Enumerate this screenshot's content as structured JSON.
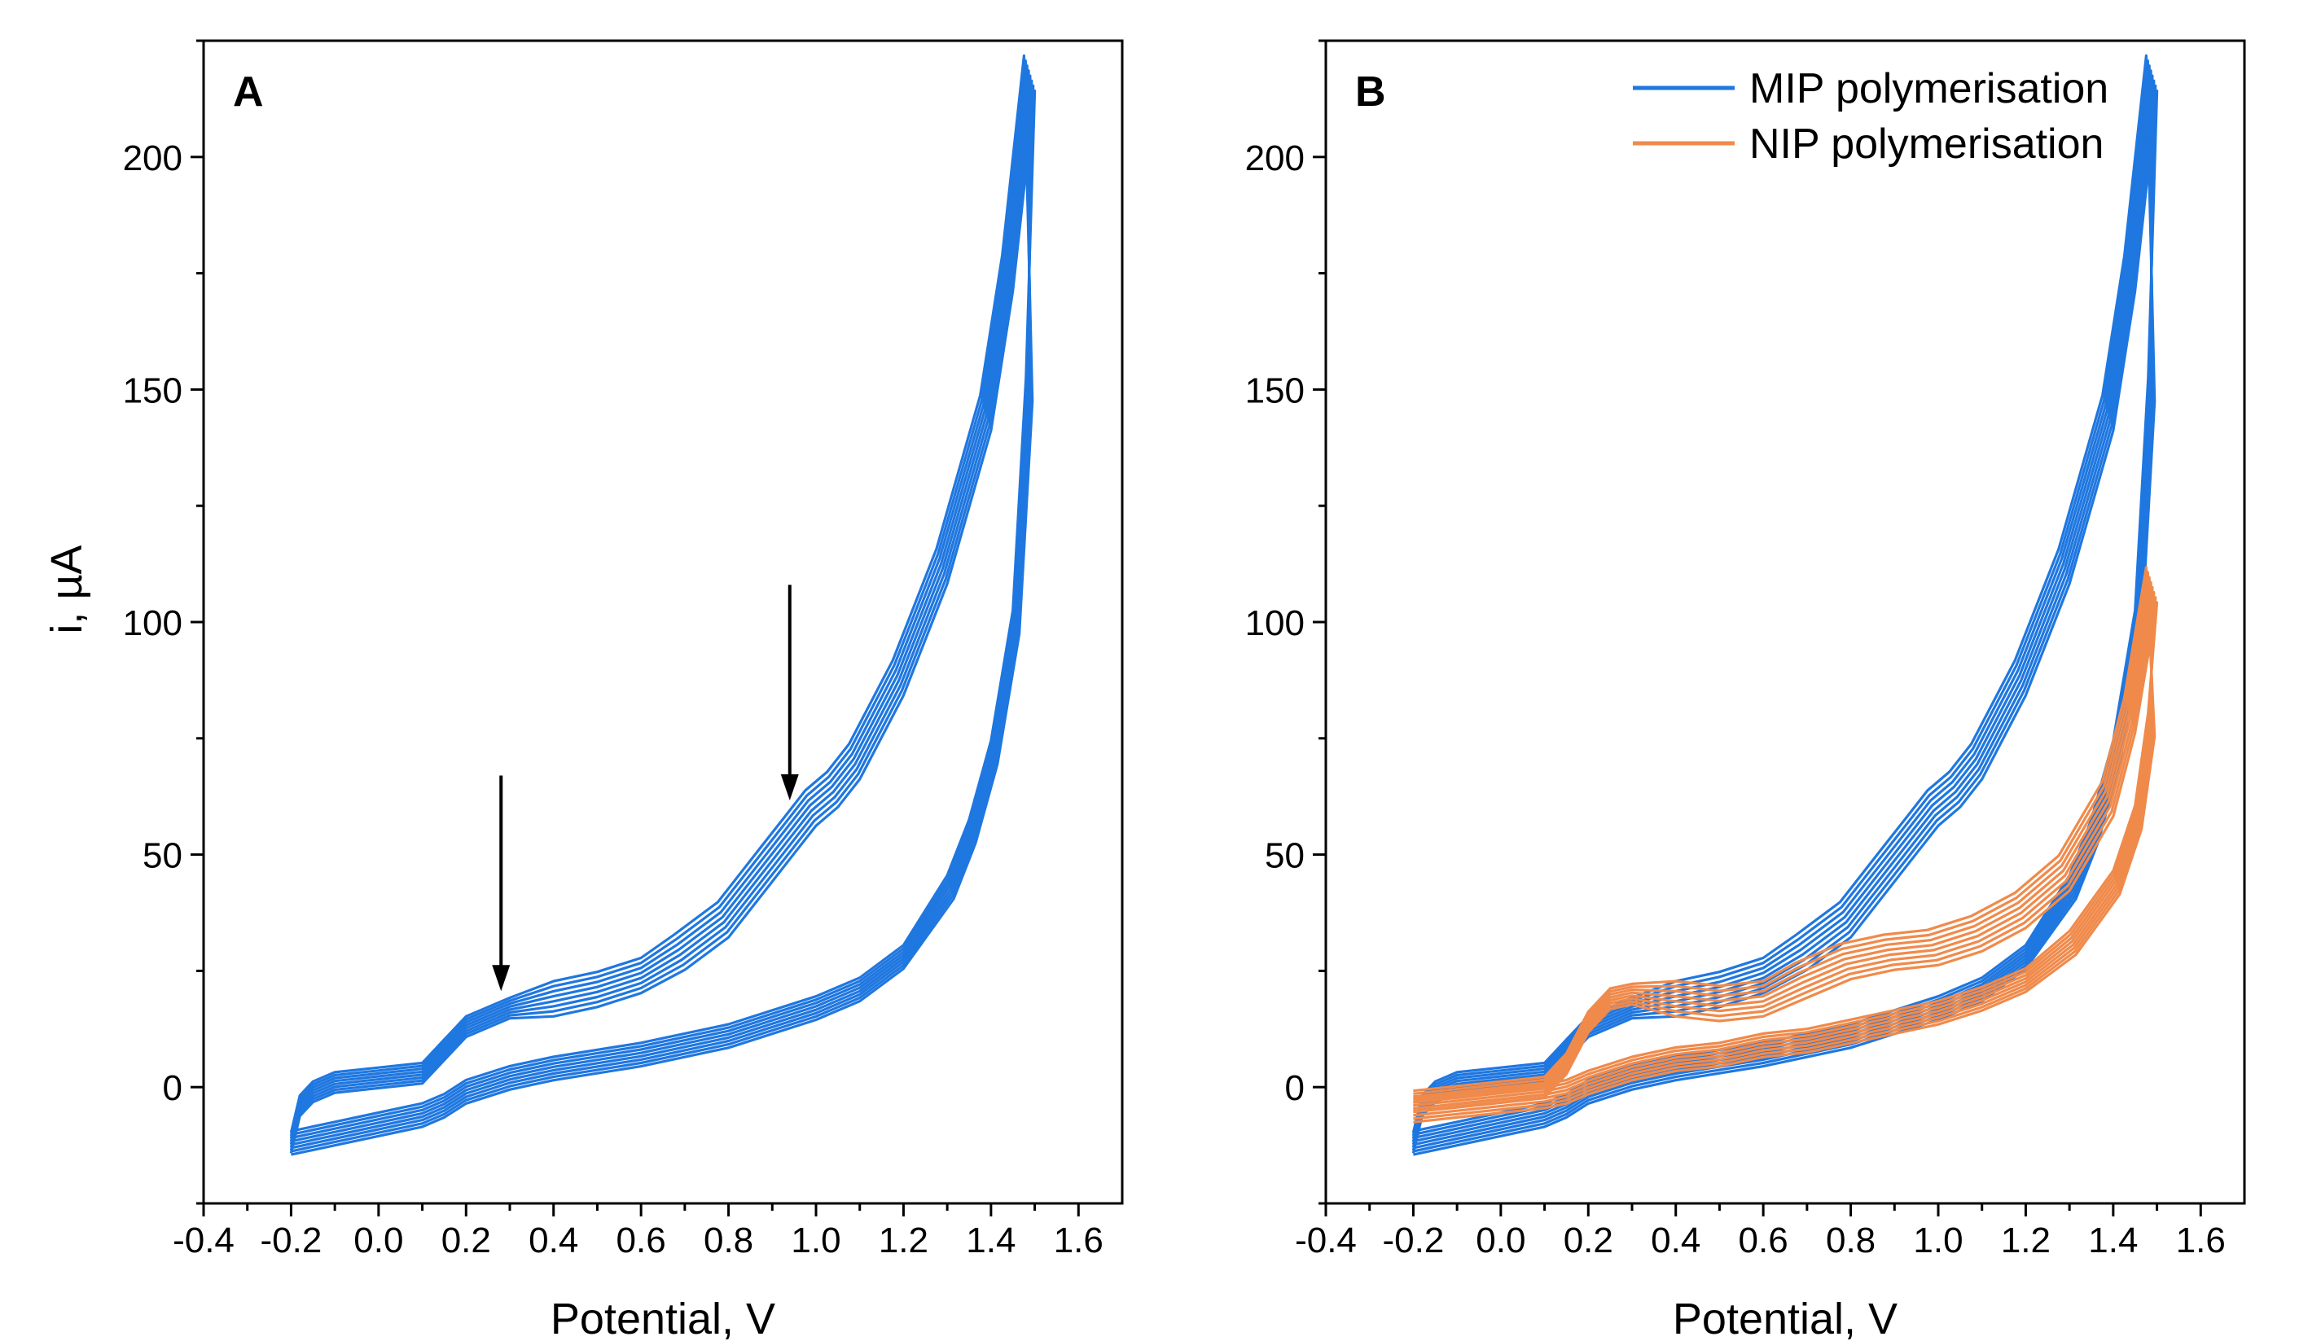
{
  "chart_data": [
    {
      "type": "line",
      "panel_label": "A",
      "xlabel": "Potential, V",
      "ylabel": "i, µA",
      "xlim": [
        -0.4,
        1.7
      ],
      "ylim": [
        -25,
        225
      ],
      "xticks": [
        "-0.4",
        "-0.2",
        "0.0",
        "0.2",
        "0.4",
        "0.6",
        "0.8",
        "1.0",
        "1.2",
        "1.4",
        "1.6"
      ],
      "yticks": [
        "0",
        "50",
        "100",
        "150",
        "200"
      ],
      "grid": false,
      "legend": "none",
      "series": [
        {
          "color": "#1f77e0",
          "cycles": 8,
          "forward": [
            [
              -0.2,
              -12
            ],
            [
              -0.18,
              -4
            ],
            [
              -0.15,
              -1
            ],
            [
              -0.1,
              1
            ],
            [
              0.0,
              2
            ],
            [
              0.1,
              3
            ],
            [
              0.15,
              8
            ],
            [
              0.2,
              13
            ],
            [
              0.3,
              17
            ],
            [
              0.4,
              19
            ],
            [
              0.5,
              21
            ],
            [
              0.6,
              24
            ],
            [
              0.7,
              29
            ],
            [
              0.8,
              36
            ],
            [
              0.9,
              48
            ],
            [
              0.95,
              54
            ],
            [
              1.0,
              60
            ],
            [
              1.05,
              64
            ],
            [
              1.1,
              70
            ],
            [
              1.2,
              88
            ],
            [
              1.3,
              112
            ],
            [
              1.4,
              145
            ],
            [
              1.45,
              175
            ],
            [
              1.5,
              218
            ]
          ],
          "reverse": [
            [
              1.5,
              218
            ],
            [
              1.48,
              150
            ],
            [
              1.45,
              100
            ],
            [
              1.4,
              72
            ],
            [
              1.35,
              55
            ],
            [
              1.3,
              43
            ],
            [
              1.2,
              28
            ],
            [
              1.1,
              21
            ],
            [
              1.0,
              17
            ],
            [
              0.8,
              11
            ],
            [
              0.6,
              7
            ],
            [
              0.4,
              4
            ],
            [
              0.3,
              2
            ],
            [
              0.2,
              -1
            ],
            [
              0.15,
              -4
            ],
            [
              0.1,
              -6
            ],
            [
              0.0,
              -8
            ],
            [
              -0.1,
              -10
            ],
            [
              -0.2,
              -12
            ]
          ]
        }
      ],
      "annotations": [
        {
          "type": "arrow",
          "from": [
            0.28,
            67
          ],
          "to": [
            0.28,
            21
          ]
        },
        {
          "type": "arrow",
          "from": [
            0.94,
            108
          ],
          "to": [
            0.94,
            62
          ]
        }
      ]
    },
    {
      "type": "line",
      "panel_label": "B",
      "xlabel": "Potential, V",
      "xlim": [
        -0.4,
        1.7
      ],
      "ylim": [
        -25,
        225
      ],
      "xticks": [
        "-0.4",
        "-0.2",
        "0.0",
        "0.2",
        "0.4",
        "0.6",
        "0.8",
        "1.0",
        "1.2",
        "1.4",
        "1.6"
      ],
      "yticks": [
        "0",
        "50",
        "100",
        "150",
        "200"
      ],
      "grid": false,
      "legend": "top-right",
      "series": [
        {
          "name": "MIP polymerisation",
          "color": "#1f77e0",
          "cycles": 8,
          "forward": [
            [
              -0.2,
              -12
            ],
            [
              -0.18,
              -4
            ],
            [
              -0.15,
              -1
            ],
            [
              -0.1,
              1
            ],
            [
              0.0,
              2
            ],
            [
              0.1,
              3
            ],
            [
              0.15,
              8
            ],
            [
              0.2,
              13
            ],
            [
              0.3,
              17
            ],
            [
              0.4,
              19
            ],
            [
              0.5,
              21
            ],
            [
              0.6,
              24
            ],
            [
              0.7,
              29
            ],
            [
              0.8,
              36
            ],
            [
              0.9,
              48
            ],
            [
              0.95,
              54
            ],
            [
              1.0,
              60
            ],
            [
              1.05,
              64
            ],
            [
              1.1,
              70
            ],
            [
              1.2,
              88
            ],
            [
              1.3,
              112
            ],
            [
              1.4,
              145
            ],
            [
              1.45,
              175
            ],
            [
              1.5,
              218
            ]
          ],
          "reverse": [
            [
              1.5,
              218
            ],
            [
              1.48,
              150
            ],
            [
              1.45,
              100
            ],
            [
              1.4,
              72
            ],
            [
              1.35,
              55
            ],
            [
              1.3,
              43
            ],
            [
              1.2,
              28
            ],
            [
              1.1,
              21
            ],
            [
              1.0,
              17
            ],
            [
              0.8,
              11
            ],
            [
              0.6,
              7
            ],
            [
              0.4,
              4
            ],
            [
              0.3,
              2
            ],
            [
              0.2,
              -1
            ],
            [
              0.15,
              -4
            ],
            [
              0.1,
              -6
            ],
            [
              0.0,
              -8
            ],
            [
              -0.1,
              -10
            ],
            [
              -0.2,
              -12
            ]
          ]
        },
        {
          "name": "NIP polymerisation",
          "color": "#f08a4b",
          "cycles": 8,
          "forward": [
            [
              -0.2,
              -3
            ],
            [
              -0.1,
              -2
            ],
            [
              0.0,
              -1
            ],
            [
              0.1,
              0
            ],
            [
              0.15,
              5
            ],
            [
              0.2,
              14
            ],
            [
              0.25,
              19
            ],
            [
              0.3,
              20
            ],
            [
              0.4,
              19
            ],
            [
              0.5,
              18
            ],
            [
              0.6,
              19
            ],
            [
              0.7,
              23
            ],
            [
              0.8,
              27
            ],
            [
              0.9,
              29
            ],
            [
              1.0,
              30
            ],
            [
              1.1,
              33
            ],
            [
              1.2,
              38
            ],
            [
              1.3,
              46
            ],
            [
              1.4,
              62
            ],
            [
              1.45,
              80
            ],
            [
              1.5,
              108
            ]
          ],
          "reverse": [
            [
              1.5,
              108
            ],
            [
              1.48,
              78
            ],
            [
              1.45,
              58
            ],
            [
              1.4,
              44
            ],
            [
              1.3,
              31
            ],
            [
              1.2,
              23
            ],
            [
              1.1,
              19
            ],
            [
              1.0,
              16
            ],
            [
              0.9,
              14
            ],
            [
              0.8,
              12
            ],
            [
              0.7,
              10
            ],
            [
              0.6,
              9
            ],
            [
              0.5,
              7
            ],
            [
              0.4,
              6
            ],
            [
              0.3,
              4
            ],
            [
              0.2,
              1
            ],
            [
              0.15,
              -1
            ],
            [
              0.1,
              -2
            ],
            [
              0.0,
              -3
            ],
            [
              -0.1,
              -4
            ],
            [
              -0.2,
              -5
            ]
          ]
        }
      ]
    }
  ]
}
